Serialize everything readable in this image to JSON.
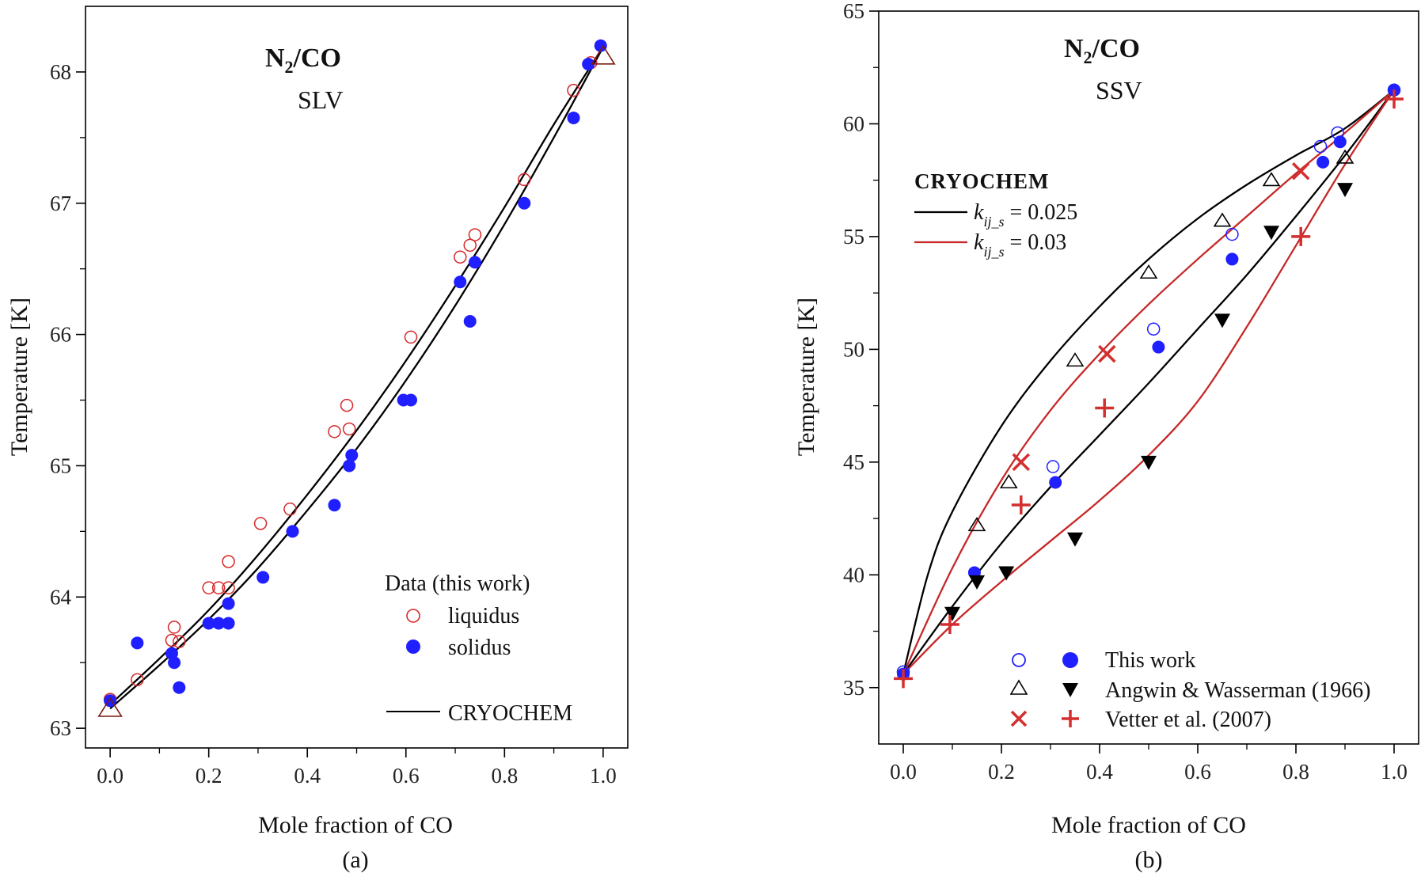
{
  "chart_data": [
    {
      "type": "scatter",
      "caption": "(a)",
      "title": "N2/CO",
      "title_base": "N",
      "title_subscript": "2",
      "title_rest": "/CO",
      "subtitle": "SLV",
      "xlabel": "Mole fraction of CO",
      "ylabel": "Temperature [K]",
      "xlim": [
        -0.05,
        1.05
      ],
      "ylim": [
        62.85,
        68.5
      ],
      "xticks": [
        0.0,
        0.2,
        0.4,
        0.6,
        0.8,
        1.0
      ],
      "xtick_labels": [
        "0.0",
        "0.2",
        "0.4",
        "0.6",
        "0.8",
        "1.0"
      ],
      "yticks": [
        63,
        64,
        65,
        66,
        67,
        68
      ],
      "ytick_labels": [
        "63",
        "64",
        "65",
        "66",
        "67",
        "68"
      ],
      "legend_title": "Data (this work)",
      "legend": [
        "liquidus",
        "solidus",
        "CRYOCHEM"
      ],
      "series": [
        {
          "name": "liquidus",
          "marker": "open-circle",
          "color": "#d62728",
          "points": [
            [
              0.0,
              63.22
            ],
            [
              0.055,
              63.37
            ],
            [
              0.125,
              63.67
            ],
            [
              0.13,
              63.77
            ],
            [
              0.14,
              63.66
            ],
            [
              0.2,
              64.07
            ],
            [
              0.22,
              64.07
            ],
            [
              0.24,
              64.27
            ],
            [
              0.24,
              64.07
            ],
            [
              0.305,
              64.56
            ],
            [
              0.365,
              64.67
            ],
            [
              0.455,
              65.26
            ],
            [
              0.48,
              65.46
            ],
            [
              0.485,
              65.28
            ],
            [
              0.61,
              65.98
            ],
            [
              0.71,
              66.59
            ],
            [
              0.73,
              66.68
            ],
            [
              0.74,
              66.76
            ],
            [
              0.84,
              67.18
            ],
            [
              0.94,
              67.86
            ],
            [
              0.975,
              68.07
            ]
          ]
        },
        {
          "name": "solidus",
          "marker": "filled-circle",
          "color": "#1f1fff",
          "points": [
            [
              0.0,
              63.21
            ],
            [
              0.055,
              63.65
            ],
            [
              0.125,
              63.57
            ],
            [
              0.13,
              63.5
            ],
            [
              0.14,
              63.31
            ],
            [
              0.2,
              63.8
            ],
            [
              0.22,
              63.8
            ],
            [
              0.24,
              63.8
            ],
            [
              0.24,
              63.95
            ],
            [
              0.31,
              64.15
            ],
            [
              0.37,
              64.5
            ],
            [
              0.455,
              64.7
            ],
            [
              0.485,
              65.0
            ],
            [
              0.49,
              65.08
            ],
            [
              0.595,
              65.5
            ],
            [
              0.61,
              65.5
            ],
            [
              0.71,
              66.4
            ],
            [
              0.73,
              66.1
            ],
            [
              0.74,
              66.55
            ],
            [
              0.84,
              67.0
            ],
            [
              0.94,
              67.65
            ],
            [
              0.97,
              68.06
            ],
            [
              0.995,
              68.2
            ]
          ]
        },
        {
          "name": "pure component",
          "marker": "open-triangle",
          "color": "#7a1a12",
          "points": [
            [
              0.0,
              63.15
            ],
            [
              1.0,
              68.12
            ]
          ]
        },
        {
          "name": "CRYOCHEM",
          "type": "line",
          "color": "#000000",
          "points": [
            [
              0.0,
              63.18
            ],
            [
              0.1,
              63.53
            ],
            [
              0.2,
              63.9
            ],
            [
              0.3,
              64.32
            ],
            [
              0.4,
              64.78
            ],
            [
              0.5,
              65.27
            ],
            [
              0.6,
              65.8
            ],
            [
              0.7,
              66.37
            ],
            [
              0.8,
              66.97
            ],
            [
              0.9,
              67.6
            ],
            [
              1.0,
              68.19
            ]
          ]
        },
        {
          "name": "CRYOCHEM",
          "type": "line",
          "color": "#000000",
          "points": [
            [
              0.0,
              63.15
            ],
            [
              0.1,
              63.48
            ],
            [
              0.2,
              63.83
            ],
            [
              0.3,
              64.22
            ],
            [
              0.4,
              64.66
            ],
            [
              0.5,
              65.13
            ],
            [
              0.6,
              65.65
            ],
            [
              0.7,
              66.22
            ],
            [
              0.8,
              66.84
            ],
            [
              0.9,
              67.5
            ],
            [
              1.0,
              68.19
            ]
          ]
        }
      ]
    },
    {
      "type": "scatter",
      "caption": "(b)",
      "title": "N2/CO",
      "title_base": "N",
      "title_subscript": "2",
      "title_rest": "/CO",
      "subtitle": "SSV",
      "xlabel": "Mole fraction of CO",
      "ylabel": "Temperature [K]",
      "xlim": [
        -0.05,
        1.05
      ],
      "ylim": [
        32.5,
        65
      ],
      "xticks": [
        0.0,
        0.2,
        0.4,
        0.6,
        0.8,
        1.0
      ],
      "xtick_labels": [
        "0.0",
        "0.2",
        "0.4",
        "0.6",
        "0.8",
        "1.0"
      ],
      "yticks": [
        35,
        40,
        45,
        50,
        55,
        60,
        65
      ],
      "ytick_labels": [
        "35",
        "40",
        "45",
        "50",
        "55",
        "60",
        "65"
      ],
      "model_legend_title": "CRYOCHEM",
      "model_legend": [
        {
          "k": "k",
          "sub": "ij_s",
          "value": " = 0.025",
          "color": "#000000"
        },
        {
          "k": "k",
          "sub": "ij_s",
          "value": " = 0.03",
          "color": "#c62828"
        }
      ],
      "data_legend": [
        "This work",
        "Angwin & Wasserman (1966)",
        "Vetter et al. (2007)"
      ],
      "series": [
        {
          "name": "This work",
          "marker": "open-circle",
          "color": "#1f1fff",
          "points": [
            [
              0.0,
              35.7
            ],
            [
              0.305,
              44.8
            ],
            [
              0.51,
              50.9
            ],
            [
              0.67,
              55.1
            ],
            [
              0.85,
              59.0
            ],
            [
              0.885,
              59.6
            ],
            [
              1.0,
              61.5
            ]
          ]
        },
        {
          "name": "This work",
          "marker": "filled-circle",
          "color": "#1f1fff",
          "points": [
            [
              0.0,
              35.6
            ],
            [
              0.145,
              40.1
            ],
            [
              0.31,
              44.1
            ],
            [
              0.52,
              50.1
            ],
            [
              0.67,
              54.0
            ],
            [
              0.855,
              58.3
            ],
            [
              0.89,
              59.2
            ],
            [
              1.0,
              61.5
            ]
          ]
        },
        {
          "name": "Angwin & Wasserman (1966)",
          "marker": "open-triangle",
          "color": "#000000",
          "points": [
            [
              0.15,
              42.2
            ],
            [
              0.215,
              44.1
            ],
            [
              0.35,
              49.5
            ],
            [
              0.5,
              53.4
            ],
            [
              0.65,
              55.7
            ],
            [
              0.75,
              57.5
            ],
            [
              0.9,
              58.5
            ]
          ]
        },
        {
          "name": "Angwin & Wasserman (1966)",
          "marker": "filled-triangle-down",
          "color": "#000000",
          "points": [
            [
              0.1,
              38.3
            ],
            [
              0.15,
              39.7
            ],
            [
              0.21,
              40.1
            ],
            [
              0.35,
              41.6
            ],
            [
              0.5,
              45.0
            ],
            [
              0.65,
              51.3
            ],
            [
              0.75,
              55.2
            ],
            [
              0.9,
              57.1
            ]
          ]
        },
        {
          "name": "Vetter et al. (2007)",
          "marker": "x",
          "color": "#d32f2f",
          "points": [
            [
              0.24,
              45.0
            ],
            [
              0.415,
              49.8
            ],
            [
              0.81,
              57.9
            ]
          ]
        },
        {
          "name": "Vetter et al. (2007)",
          "marker": "plus",
          "color": "#d32f2f",
          "points": [
            [
              0.0,
              35.4
            ],
            [
              0.095,
              37.8
            ],
            [
              0.24,
              43.1
            ],
            [
              0.41,
              47.4
            ],
            [
              0.81,
              55.0
            ],
            [
              1.0,
              61.1
            ]
          ]
        },
        {
          "name": "k_ij_s = 0.025",
          "type": "line",
          "color": "#000000",
          "points": [
            [
              0.0,
              35.6
            ],
            [
              0.05,
              40.0
            ],
            [
              0.1,
              42.8
            ],
            [
              0.2,
              46.6
            ],
            [
              0.3,
              49.5
            ],
            [
              0.4,
              51.9
            ],
            [
              0.5,
              54.0
            ],
            [
              0.6,
              55.8
            ],
            [
              0.7,
              57.3
            ],
            [
              0.8,
              58.6
            ],
            [
              0.9,
              59.8
            ],
            [
              1.0,
              61.5
            ]
          ]
        },
        {
          "name": "k_ij_s = 0.025",
          "type": "line",
          "color": "#000000",
          "points": [
            [
              0.0,
              35.6
            ],
            [
              0.1,
              38.6
            ],
            [
              0.2,
              41.4
            ],
            [
              0.3,
              43.9
            ],
            [
              0.4,
              46.2
            ],
            [
              0.5,
              48.5
            ],
            [
              0.6,
              50.9
            ],
            [
              0.7,
              53.3
            ],
            [
              0.8,
              55.9
            ],
            [
              0.9,
              58.6
            ],
            [
              1.0,
              61.5
            ]
          ]
        },
        {
          "name": "k_ij_s = 0.03",
          "type": "line",
          "color": "#c62828",
          "points": [
            [
              0.0,
              35.6
            ],
            [
              0.1,
              40.3
            ],
            [
              0.2,
              44.2
            ],
            [
              0.3,
              47.3
            ],
            [
              0.4,
              49.8
            ],
            [
              0.5,
              52.0
            ],
            [
              0.6,
              54.0
            ],
            [
              0.7,
              55.9
            ],
            [
              0.8,
              57.8
            ],
            [
              0.9,
              59.6
            ],
            [
              1.0,
              61.5
            ]
          ]
        },
        {
          "name": "k_ij_s = 0.03",
          "type": "line",
          "color": "#c62828",
          "points": [
            [
              0.0,
              35.6
            ],
            [
              0.1,
              37.8
            ],
            [
              0.2,
              39.7
            ],
            [
              0.3,
              41.5
            ],
            [
              0.4,
              43.3
            ],
            [
              0.5,
              45.3
            ],
            [
              0.6,
              47.7
            ],
            [
              0.7,
              51.0
            ],
            [
              0.8,
              54.6
            ],
            [
              0.9,
              58.2
            ],
            [
              1.0,
              61.5
            ]
          ]
        }
      ]
    }
  ]
}
